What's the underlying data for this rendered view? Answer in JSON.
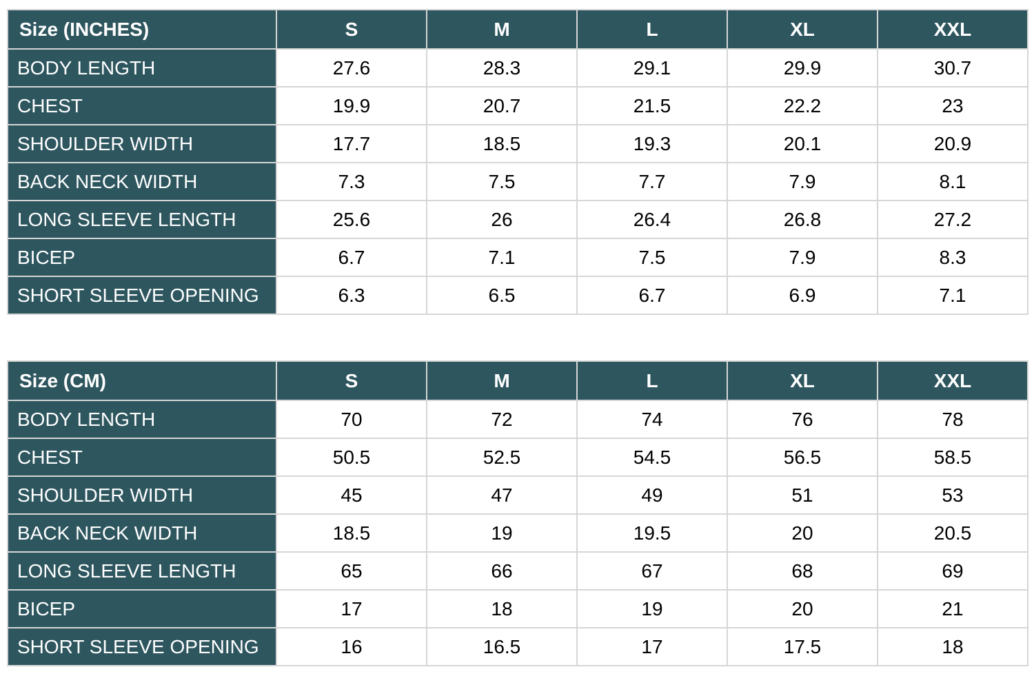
{
  "styles": {
    "header_bg": "#2e565f",
    "header_text": "#ffffff",
    "cell_text": "#000000",
    "border_inner": "#d6d6d6",
    "border_outer": "#a9a9a9",
    "page_bg": "#ffffff"
  },
  "chart_data": [
    {
      "type": "table",
      "title": "Size (INCHES)",
      "corner_label": "Size (INCHES)",
      "size_columns": [
        "S",
        "M",
        "L",
        "XL",
        "XXL"
      ],
      "rows": [
        {
          "label": "BODY LENGTH",
          "values": [
            "27.6",
            "28.3",
            "29.1",
            "29.9",
            "30.7"
          ]
        },
        {
          "label": "CHEST",
          "values": [
            "19.9",
            "20.7",
            "21.5",
            "22.2",
            "23"
          ]
        },
        {
          "label": "SHOULDER WIDTH",
          "values": [
            "17.7",
            "18.5",
            "19.3",
            "20.1",
            "20.9"
          ]
        },
        {
          "label": "BACK NECK WIDTH",
          "values": [
            "7.3",
            "7.5",
            "7.7",
            "7.9",
            "8.1"
          ]
        },
        {
          "label": "LONG SLEEVE LENGTH",
          "values": [
            "25.6",
            "26",
            "26.4",
            "26.8",
            "27.2"
          ]
        },
        {
          "label": "BICEP",
          "values": [
            "6.7",
            "7.1",
            "7.5",
            "7.9",
            "8.3"
          ]
        },
        {
          "label": "SHORT SLEEVE OPENING",
          "values": [
            "6.3",
            "6.5",
            "6.7",
            "6.9",
            "7.1"
          ]
        }
      ]
    },
    {
      "type": "table",
      "title": "Size (CM)",
      "corner_label": "Size (CM)",
      "size_columns": [
        "S",
        "M",
        "L",
        "XL",
        "XXL"
      ],
      "rows": [
        {
          "label": "BODY LENGTH",
          "values": [
            "70",
            "72",
            "74",
            "76",
            "78"
          ]
        },
        {
          "label": "CHEST",
          "values": [
            "50.5",
            "52.5",
            "54.5",
            "56.5",
            "58.5"
          ]
        },
        {
          "label": "SHOULDER WIDTH",
          "values": [
            "45",
            "47",
            "49",
            "51",
            "53"
          ]
        },
        {
          "label": "BACK NECK WIDTH",
          "values": [
            "18.5",
            "19",
            "19.5",
            "20",
            "20.5"
          ]
        },
        {
          "label": "LONG SLEEVE LENGTH",
          "values": [
            "65",
            "66",
            "67",
            "68",
            "69"
          ]
        },
        {
          "label": "BICEP",
          "values": [
            "17",
            "18",
            "19",
            "20",
            "21"
          ]
        },
        {
          "label": "SHORT SLEEVE OPENING",
          "values": [
            "16",
            "16.5",
            "17",
            "17.5",
            "18"
          ]
        }
      ]
    }
  ]
}
